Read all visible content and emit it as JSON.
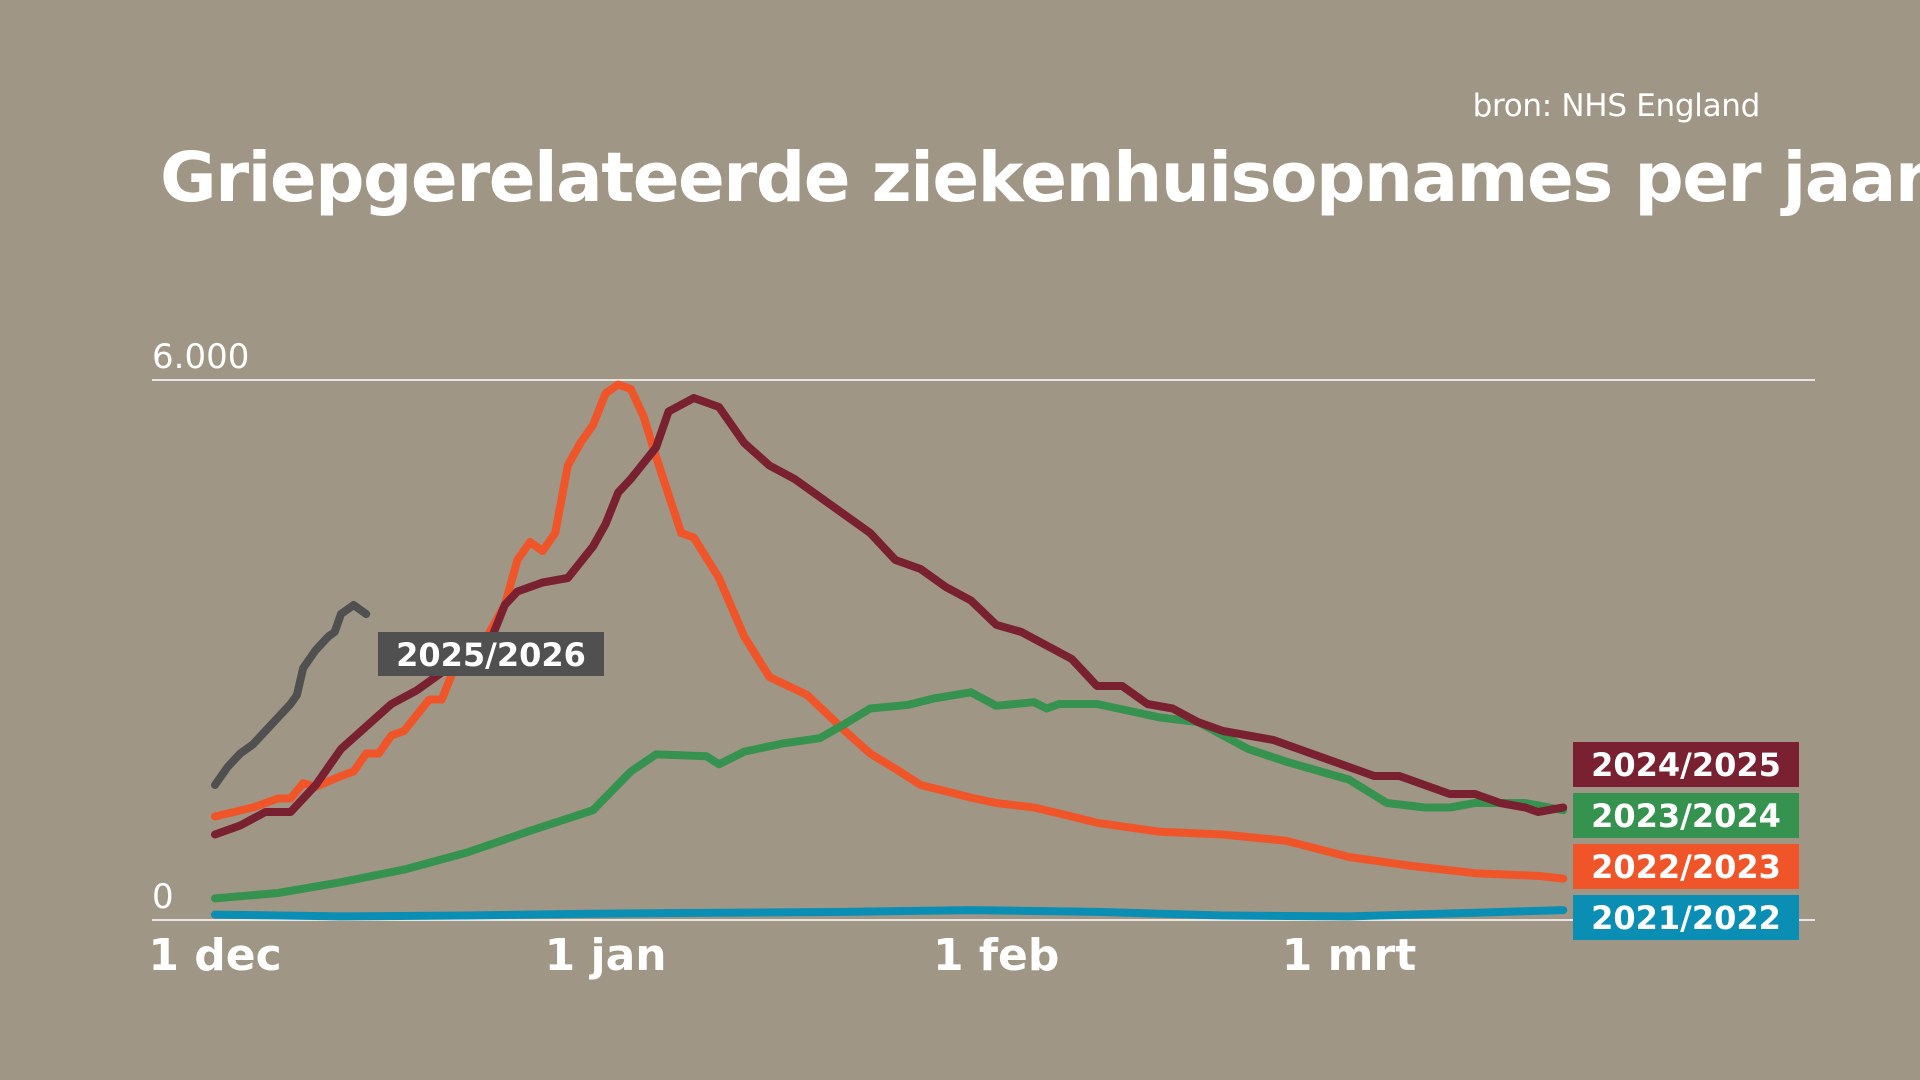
{
  "header": {
    "source": "bron: NHS England",
    "title": "Griepgerelateerde ziekenhuisopnames per jaar"
  },
  "chart_data": {
    "type": "line",
    "title": "Griepgerelateerde ziekenhuisopnames per jaar",
    "xlabel": "",
    "ylabel": "",
    "ylim": [
      0,
      6000
    ],
    "y_ticks": [
      {
        "value": 0,
        "label": "0"
      },
      {
        "value": 6000,
        "label": "6.000"
      }
    ],
    "x_ticks": [
      {
        "label": "1 dec",
        "day": 0
      },
      {
        "label": "1 jan",
        "day": 31
      },
      {
        "label": "1 feb",
        "day": 62
      },
      {
        "label": "1 mrt",
        "day": 90
      }
    ],
    "xlim_days": [
      -2.5,
      133
    ],
    "grid": "horizontal lines at 0 and 6.000",
    "legend": "right, below lines",
    "series": [
      {
        "name": "2021/2022",
        "color": "#0a8eb4",
        "x_days": [
          0,
          10,
          20,
          30,
          40,
          50,
          60,
          70,
          80,
          90,
          100,
          107
        ],
        "values": [
          60,
          40,
          50,
          70,
          80,
          90,
          110,
          90,
          50,
          40,
          80,
          110
        ]
      },
      {
        "name": "2022/2023",
        "color": "#f05529",
        "x_days": [
          0,
          3,
          5,
          6,
          7,
          8,
          10,
          11,
          12,
          13,
          14,
          15,
          17,
          18,
          19,
          20,
          21,
          23,
          24,
          25,
          26,
          27,
          28,
          29,
          30,
          31,
          32,
          33,
          34,
          35,
          37,
          38,
          40,
          42,
          44,
          47,
          50,
          52,
          54,
          56,
          58,
          60,
          62,
          65,
          68,
          70,
          75,
          80,
          85,
          90,
          95,
          100,
          105,
          107
        ],
        "values": [
          1150,
          1250,
          1350,
          1350,
          1520,
          1480,
          1600,
          1650,
          1850,
          1850,
          2050,
          2100,
          2450,
          2450,
          2800,
          2850,
          3000,
          3500,
          4000,
          4200,
          4100,
          4300,
          5050,
          5300,
          5500,
          5850,
          5950,
          5900,
          5600,
          5150,
          4300,
          4250,
          3800,
          3150,
          2700,
          2500,
          2100,
          1850,
          1680,
          1500,
          1430,
          1360,
          1300,
          1250,
          1150,
          1080,
          980,
          950,
          880,
          700,
          600,
          520,
          490,
          460
        ]
      },
      {
        "name": "2023/2024",
        "color": "#36924f",
        "x_days": [
          0,
          5,
          10,
          15,
          20,
          25,
          30,
          33,
          35,
          37,
          39,
          40,
          42,
          45,
          48,
          50,
          52,
          55,
          57,
          60,
          62,
          65,
          66,
          67,
          70,
          75,
          78,
          80,
          82,
          85,
          90,
          93,
          96,
          98,
          100,
          104,
          107
        ],
        "values": [
          240,
          300,
          420,
          560,
          750,
          990,
          1220,
          1650,
          1840,
          1830,
          1820,
          1730,
          1870,
          1960,
          2020,
          2180,
          2350,
          2390,
          2460,
          2530,
          2380,
          2420,
          2350,
          2400,
          2400,
          2250,
          2200,
          2050,
          1900,
          1760,
          1560,
          1300,
          1250,
          1250,
          1300,
          1300,
          1220
        ]
      },
      {
        "name": "2024/2025",
        "color": "#7a2131",
        "x_days": [
          0,
          2,
          4,
          6,
          8,
          10,
          12,
          14,
          16,
          18,
          20,
          22,
          23,
          24,
          26,
          28,
          30,
          31,
          32,
          33,
          35,
          36,
          38,
          40,
          42,
          44,
          46,
          48,
          50,
          52,
          54,
          56,
          58,
          60,
          62,
          64,
          66,
          68,
          70,
          72,
          74,
          76,
          78,
          80,
          82,
          84,
          86,
          88,
          90,
          92,
          94,
          96,
          98,
          100,
          102,
          104,
          105,
          107
        ],
        "values": [
          950,
          1050,
          1200,
          1200,
          1500,
          1900,
          2150,
          2400,
          2550,
          2750,
          2900,
          3150,
          3500,
          3650,
          3750,
          3800,
          4150,
          4400,
          4750,
          4900,
          5250,
          5650,
          5800,
          5700,
          5300,
          5050,
          4900,
          4700,
          4500,
          4300,
          4000,
          3900,
          3700,
          3550,
          3280,
          3200,
          3050,
          2900,
          2600,
          2600,
          2400,
          2350,
          2200,
          2100,
          2050,
          2000,
          1900,
          1800,
          1700,
          1600,
          1600,
          1500,
          1400,
          1400,
          1300,
          1250,
          1200,
          1250
        ]
      },
      {
        "name": "2025/2026",
        "color": "#505050",
        "x_days": [
          0,
          1,
          2,
          3,
          4,
          5,
          6,
          6.5,
          7,
          8,
          9,
          9.5,
          10,
          11,
          12
        ],
        "values": [
          1500,
          1700,
          1850,
          1950,
          2100,
          2250,
          2400,
          2500,
          2800,
          3000,
          3150,
          3200,
          3400,
          3500,
          3400
        ]
      }
    ],
    "annotations": [
      {
        "text": "2025/2026",
        "series": "2025/2026"
      }
    ]
  }
}
